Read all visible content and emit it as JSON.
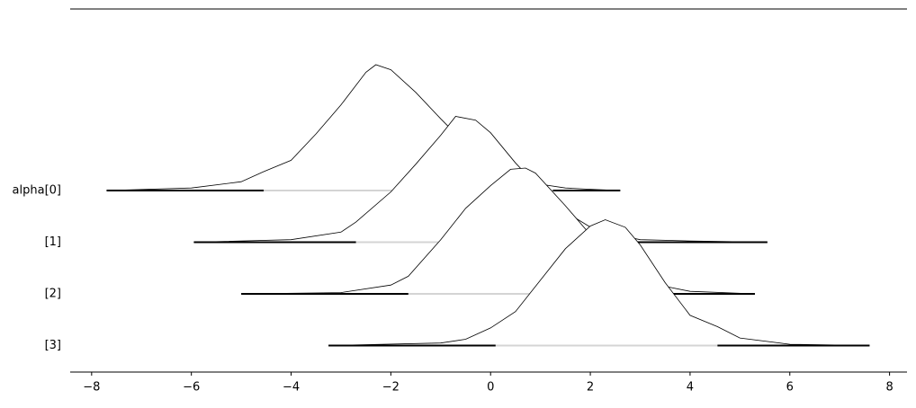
{
  "chart_data": {
    "type": "ridgeline",
    "xlim": [
      -8.43,
      8.35
    ],
    "xticks": [
      {
        "value": -8,
        "label": "−8"
      },
      {
        "value": -6,
        "label": "−6"
      },
      {
        "value": -4,
        "label": "−4"
      },
      {
        "value": -2,
        "label": "−2"
      },
      0,
      2,
      4,
      6,
      8
    ],
    "series": [
      {
        "name": "alpha[0]",
        "color": "#000000",
        "hdi": [
          -4.55,
          1.25
        ],
        "x": [
          -7.7,
          -6,
          -5,
          -4.55,
          -4,
          -3.5,
          -3,
          -2.5,
          -2.3,
          -2,
          -1.5,
          -1,
          -0.5,
          0,
          0.5,
          1,
          1.5,
          2,
          2.6
        ],
        "values": [
          0,
          0.02,
          0.07,
          0.15,
          0.24,
          0.45,
          0.68,
          0.94,
          1,
          0.96,
          0.78,
          0.57,
          0.37,
          0.18,
          0.1,
          0.05,
          0.02,
          0.01,
          0
        ]
      },
      {
        "name": "[1]",
        "color": "#000000",
        "hdi": [
          -2.7,
          1.8
        ],
        "x": [
          -5.95,
          -4,
          -3,
          -2.7,
          -2,
          -1.5,
          -1,
          -0.7,
          -0.3,
          0,
          0.5,
          1,
          1.5,
          2,
          2.5,
          3,
          4,
          5.55
        ],
        "values": [
          0,
          0.02,
          0.08,
          0.16,
          0.4,
          0.62,
          0.85,
          1,
          0.97,
          0.87,
          0.63,
          0.42,
          0.24,
          0.12,
          0.06,
          0.02,
          0.01,
          0
        ]
      },
      {
        "name": "[2]",
        "color": "#000000",
        "hdi": [
          -1.65,
          2.75
        ],
        "x": [
          -5,
          -3,
          -2,
          -1.65,
          -1,
          -0.5,
          0,
          0.4,
          0.7,
          0.9,
          1.5,
          2,
          2.5,
          2.75,
          3.5,
          4,
          5.3
        ],
        "values": [
          0,
          0.01,
          0.07,
          0.14,
          0.43,
          0.68,
          0.86,
          0.99,
          1,
          0.96,
          0.7,
          0.47,
          0.29,
          0.21,
          0.06,
          0.02,
          0
        ]
      },
      {
        "name": "[3]",
        "color": "#000000",
        "hdi": [
          0.1,
          4.55
        ],
        "x": [
          -3.25,
          -1,
          -0.5,
          0,
          0.5,
          1,
          1.5,
          2,
          2.3,
          2.7,
          3,
          3.5,
          4,
          4.55,
          5,
          6,
          7.6
        ],
        "values": [
          0,
          0.02,
          0.05,
          0.14,
          0.27,
          0.52,
          0.77,
          0.95,
          1,
          0.94,
          0.8,
          0.5,
          0.24,
          0.15,
          0.06,
          0.01,
          0
        ]
      }
    ]
  }
}
